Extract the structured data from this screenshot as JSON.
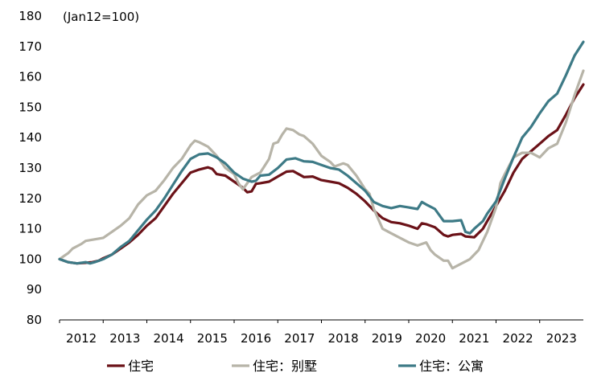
{
  "chart_data": {
    "type": "line",
    "unit_note": "(Jan12=100)",
    "x_tick_labels": [
      "2012",
      "2013",
      "2014",
      "2015",
      "2016",
      "2017",
      "2018",
      "2019",
      "2020",
      "2021",
      "2022",
      "2023"
    ],
    "y_tick_labels": [
      "80",
      "90",
      "100",
      "110",
      "120",
      "130",
      "140",
      "150",
      "160",
      "170",
      "180"
    ],
    "ylim": [
      80,
      180
    ],
    "xlim": [
      2012.0,
      2024.0
    ],
    "grid": false,
    "legend_position": "bottom",
    "series": [
      {
        "name": "住宅",
        "color": "#6b1218",
        "points": [
          [
            2012.0,
            100
          ],
          [
            2012.2,
            99
          ],
          [
            2012.4,
            98.6
          ],
          [
            2012.6,
            98.8
          ],
          [
            2012.75,
            99
          ],
          [
            2012.9,
            99.5
          ],
          [
            2013.0,
            100.3
          ],
          [
            2013.2,
            101.5
          ],
          [
            2013.4,
            103.5
          ],
          [
            2013.6,
            105.5
          ],
          [
            2013.8,
            108
          ],
          [
            2014.0,
            111
          ],
          [
            2014.2,
            113.5
          ],
          [
            2014.4,
            117.5
          ],
          [
            2014.6,
            121.5
          ],
          [
            2014.8,
            125
          ],
          [
            2015.0,
            128.5
          ],
          [
            2015.2,
            129.5
          ],
          [
            2015.4,
            130.2
          ],
          [
            2015.5,
            129.7
          ],
          [
            2015.6,
            128
          ],
          [
            2015.8,
            127.5
          ],
          [
            2016.0,
            125.5
          ],
          [
            2016.2,
            123.5
          ],
          [
            2016.3,
            122
          ],
          [
            2016.4,
            122.3
          ],
          [
            2016.5,
            124.8
          ],
          [
            2016.6,
            125
          ],
          [
            2016.8,
            125.5
          ],
          [
            2017.0,
            127.2
          ],
          [
            2017.2,
            128.8
          ],
          [
            2017.35,
            129
          ],
          [
            2017.5,
            127.8
          ],
          [
            2017.6,
            127
          ],
          [
            2017.8,
            127.2
          ],
          [
            2018.0,
            126
          ],
          [
            2018.2,
            125.5
          ],
          [
            2018.4,
            125
          ],
          [
            2018.6,
            123.5
          ],
          [
            2018.8,
            121.5
          ],
          [
            2019.0,
            119
          ],
          [
            2019.2,
            116
          ],
          [
            2019.4,
            113.5
          ],
          [
            2019.6,
            112.2
          ],
          [
            2019.8,
            111.8
          ],
          [
            2020.0,
            111
          ],
          [
            2020.2,
            110
          ],
          [
            2020.3,
            111.8
          ],
          [
            2020.4,
            111.5
          ],
          [
            2020.6,
            110.5
          ],
          [
            2020.8,
            108
          ],
          [
            2020.9,
            107.5
          ],
          [
            2021.0,
            108
          ],
          [
            2021.2,
            108.3
          ],
          [
            2021.3,
            107.5
          ],
          [
            2021.5,
            107.2
          ],
          [
            2021.7,
            110
          ],
          [
            2021.8,
            112.5
          ],
          [
            2022.0,
            117.5
          ],
          [
            2022.2,
            122.5
          ],
          [
            2022.4,
            128.5
          ],
          [
            2022.6,
            133
          ],
          [
            2022.8,
            135.5
          ],
          [
            2023.0,
            138
          ],
          [
            2023.2,
            140.5
          ],
          [
            2023.4,
            142.5
          ],
          [
            2023.6,
            147.5
          ],
          [
            2023.8,
            153
          ],
          [
            2024.0,
            157.5
          ]
        ]
      },
      {
        "name": "住宅：别墅",
        "color": "#b7b4a8",
        "points": [
          [
            2012.0,
            100
          ],
          [
            2012.1,
            101
          ],
          [
            2012.2,
            102
          ],
          [
            2012.3,
            103.5
          ],
          [
            2012.5,
            105
          ],
          [
            2012.6,
            106
          ],
          [
            2012.8,
            106.5
          ],
          [
            2013.0,
            107
          ],
          [
            2013.2,
            109
          ],
          [
            2013.4,
            111
          ],
          [
            2013.6,
            113.5
          ],
          [
            2013.8,
            118
          ],
          [
            2014.0,
            121
          ],
          [
            2014.2,
            122.5
          ],
          [
            2014.4,
            126
          ],
          [
            2014.6,
            130
          ],
          [
            2014.8,
            133
          ],
          [
            2015.0,
            137.5
          ],
          [
            2015.1,
            139
          ],
          [
            2015.2,
            138.5
          ],
          [
            2015.4,
            137
          ],
          [
            2015.6,
            134
          ],
          [
            2015.8,
            130
          ],
          [
            2016.0,
            128
          ],
          [
            2016.1,
            125
          ],
          [
            2016.2,
            123
          ],
          [
            2016.3,
            125
          ],
          [
            2016.4,
            127
          ],
          [
            2016.6,
            128.5
          ],
          [
            2016.8,
            133
          ],
          [
            2016.9,
            138
          ],
          [
            2017.0,
            138.5
          ],
          [
            2017.1,
            141
          ],
          [
            2017.2,
            143
          ],
          [
            2017.35,
            142.5
          ],
          [
            2017.5,
            141
          ],
          [
            2017.6,
            140.5
          ],
          [
            2017.8,
            138
          ],
          [
            2018.0,
            134
          ],
          [
            2018.2,
            132
          ],
          [
            2018.3,
            130.5
          ],
          [
            2018.5,
            131.5
          ],
          [
            2018.6,
            131
          ],
          [
            2018.8,
            127.5
          ],
          [
            2019.0,
            123
          ],
          [
            2019.1,
            121.5
          ],
          [
            2019.2,
            116.5
          ],
          [
            2019.4,
            110
          ],
          [
            2019.6,
            108.5
          ],
          [
            2019.8,
            107
          ],
          [
            2020.0,
            105.5
          ],
          [
            2020.2,
            104.5
          ],
          [
            2020.4,
            105.5
          ],
          [
            2020.5,
            103
          ],
          [
            2020.6,
            101.5
          ],
          [
            2020.8,
            99.5
          ],
          [
            2020.9,
            99.5
          ],
          [
            2021.0,
            97
          ],
          [
            2021.2,
            98.5
          ],
          [
            2021.4,
            100
          ],
          [
            2021.6,
            103
          ],
          [
            2021.8,
            109
          ],
          [
            2022.0,
            117
          ],
          [
            2022.1,
            125
          ],
          [
            2022.2,
            128
          ],
          [
            2022.4,
            133.5
          ],
          [
            2022.6,
            135
          ],
          [
            2022.8,
            135
          ],
          [
            2023.0,
            133.5
          ],
          [
            2023.2,
            136.5
          ],
          [
            2023.4,
            138
          ],
          [
            2023.6,
            145
          ],
          [
            2023.8,
            154
          ],
          [
            2024.0,
            162
          ]
        ]
      },
      {
        "name": "住宅：公寓",
        "color": "#3d7a86",
        "points": [
          [
            2012.0,
            100
          ],
          [
            2012.2,
            99
          ],
          [
            2012.4,
            98.6
          ],
          [
            2012.6,
            99
          ],
          [
            2012.7,
            98.6
          ],
          [
            2012.8,
            99
          ],
          [
            2013.0,
            100
          ],
          [
            2013.2,
            101.5
          ],
          [
            2013.4,
            104
          ],
          [
            2013.6,
            106
          ],
          [
            2013.8,
            109.5
          ],
          [
            2014.0,
            113
          ],
          [
            2014.2,
            116
          ],
          [
            2014.4,
            120
          ],
          [
            2014.6,
            124.5
          ],
          [
            2014.8,
            129
          ],
          [
            2015.0,
            133
          ],
          [
            2015.2,
            134.5
          ],
          [
            2015.4,
            134.8
          ],
          [
            2015.6,
            133.5
          ],
          [
            2015.8,
            131.5
          ],
          [
            2016.0,
            128.5
          ],
          [
            2016.2,
            126.5
          ],
          [
            2016.4,
            125.5
          ],
          [
            2016.5,
            125.8
          ],
          [
            2016.6,
            127.5
          ],
          [
            2016.8,
            127.8
          ],
          [
            2017.0,
            130
          ],
          [
            2017.2,
            132.8
          ],
          [
            2017.4,
            133.2
          ],
          [
            2017.6,
            132.2
          ],
          [
            2017.8,
            132
          ],
          [
            2018.0,
            131
          ],
          [
            2018.2,
            130
          ],
          [
            2018.4,
            129.5
          ],
          [
            2018.6,
            127.5
          ],
          [
            2018.8,
            125
          ],
          [
            2019.0,
            122.5
          ],
          [
            2019.2,
            118.8
          ],
          [
            2019.4,
            117.5
          ],
          [
            2019.6,
            116.8
          ],
          [
            2019.8,
            117.5
          ],
          [
            2020.0,
            117
          ],
          [
            2020.2,
            116.5
          ],
          [
            2020.3,
            118.8
          ],
          [
            2020.4,
            118
          ],
          [
            2020.6,
            116.5
          ],
          [
            2020.8,
            112.5
          ],
          [
            2021.0,
            112.5
          ],
          [
            2021.2,
            112.8
          ],
          [
            2021.3,
            109
          ],
          [
            2021.4,
            108.5
          ],
          [
            2021.5,
            110
          ],
          [
            2021.7,
            112.5
          ],
          [
            2021.8,
            115
          ],
          [
            2022.0,
            119
          ],
          [
            2022.2,
            126.5
          ],
          [
            2022.4,
            133.5
          ],
          [
            2022.6,
            140
          ],
          [
            2022.8,
            143.5
          ],
          [
            2023.0,
            148
          ],
          [
            2023.2,
            152
          ],
          [
            2023.4,
            154.5
          ],
          [
            2023.6,
            160.5
          ],
          [
            2023.8,
            167
          ],
          [
            2024.0,
            171.5
          ]
        ]
      }
    ]
  }
}
